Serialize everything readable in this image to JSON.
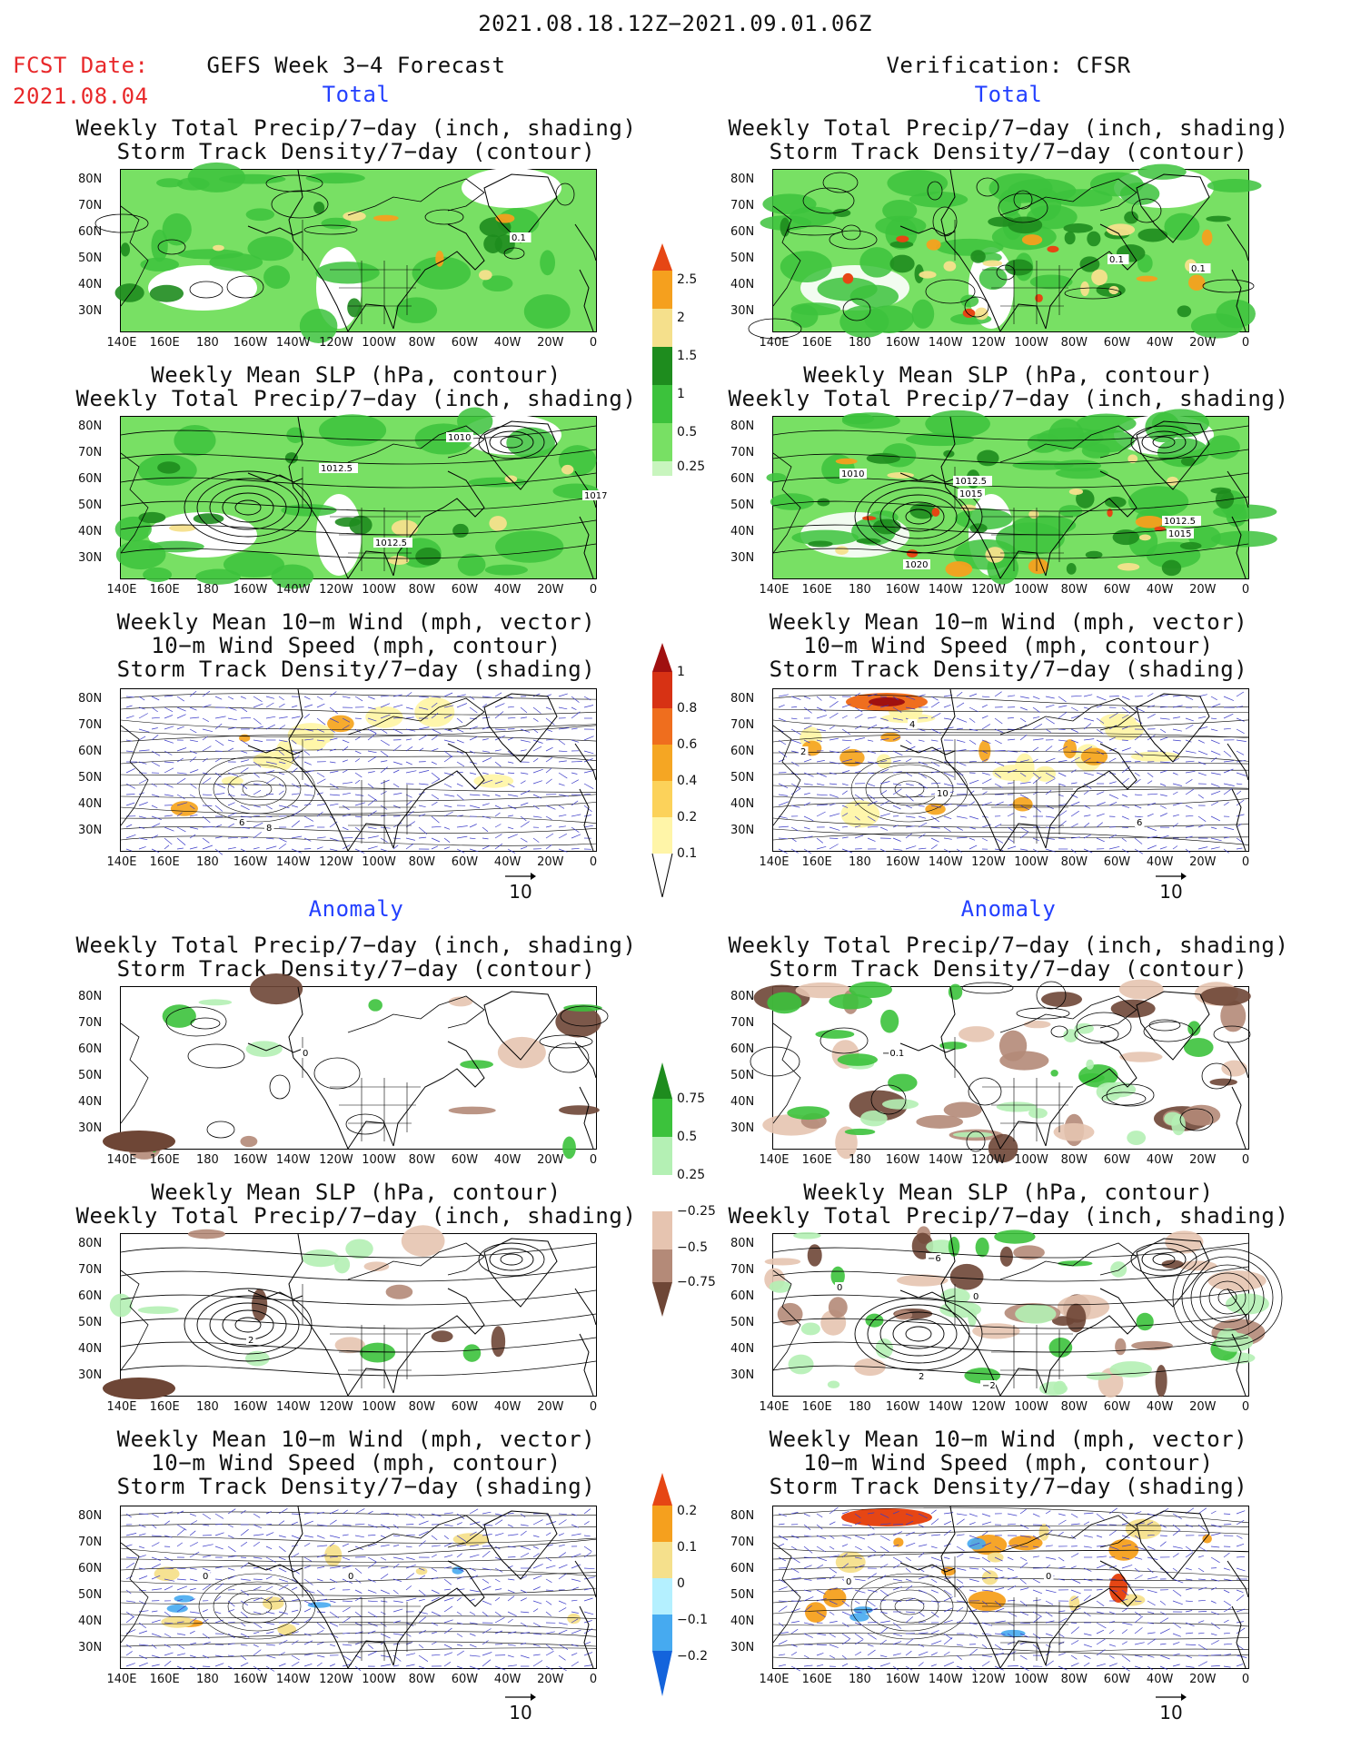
{
  "header": {
    "period": "2021.08.18.12Z−2021.09.01.06Z",
    "fcst_label": "FCST Date:",
    "fcst_date": "2021.08.04",
    "model": "GEFS Week 3−4 Forecast",
    "verification": "Verification: CFSR",
    "total": "Total",
    "anomaly": "Anomaly"
  },
  "titles": {
    "precip_storm": [
      "Weekly Total Precip/7−day (inch, shading)",
      "Storm Track Density/7−day (contour)"
    ],
    "slp_precip": [
      "Weekly Mean SLP (hPa, contour)",
      "Weekly Total Precip/7−day (inch, shading)"
    ],
    "wind": [
      "Weekly Mean 10−m Wind (mph, vector)",
      "10−m Wind Speed (mph, contour)",
      "Storm Track Density/7−day (shading)"
    ]
  },
  "axes": {
    "lat_ticks": [
      "80N",
      "70N",
      "60N",
      "50N",
      "40N",
      "30N"
    ],
    "lon_ticks": [
      "140E",
      "160E",
      "180",
      "160W",
      "140W",
      "120W",
      "100W",
      "80W",
      "60W",
      "40W",
      "20W",
      "0"
    ]
  },
  "vector_ref": "10",
  "colorbars": {
    "total_precip": [
      "2.5",
      "2",
      "1.5",
      "1",
      "0.5",
      "0.25"
    ],
    "total_storm": [
      "1",
      "0.8",
      "0.6",
      "0.4",
      "0.2",
      "0.1"
    ],
    "anom_precip": [
      "0.75",
      "0.5",
      "0.25",
      "−0.25",
      "−0.5",
      "−0.75"
    ],
    "anom_storm": [
      "0.2",
      "0.1",
      "0",
      "−0.1",
      "−0.2"
    ]
  },
  "map_labels": {
    "fc_precip": [
      "0.1"
    ],
    "ob_precip": [
      "0.1",
      "0.1"
    ],
    "fc_slp": [
      "1010",
      "1012.5",
      "1017",
      "1012.5"
    ],
    "ob_slp": [
      "1010",
      "1012.5",
      "1015",
      "1012.5",
      "1015",
      "1020"
    ],
    "ob_wind": [
      "4",
      "2",
      "10",
      "6"
    ],
    "fc_wind": [
      "6",
      "8"
    ],
    "fc_anom_precip": [
      "0"
    ],
    "ob_anom_precip": [
      "−0.1"
    ],
    "fc_anom_slp": [
      "2"
    ],
    "ob_anom_slp": [
      "0",
      "0",
      "2",
      "−2",
      "−6"
    ],
    "fc_anom_wind": [
      "0",
      "0"
    ],
    "ob_anom_wind": [
      "0",
      "0"
    ]
  },
  "colors": {
    "precip_green": [
      "#c8f5be",
      "#78e064",
      "#3cc23c",
      "#1e8c1e"
    ],
    "precip_warm": [
      "#f5e08c",
      "#f5a01e",
      "#e64614"
    ],
    "storm_warm": [
      "#fff5a8",
      "#fcd25a",
      "#f5a623",
      "#ef6e1e",
      "#d73214",
      "#a01010"
    ],
    "anom_brown": [
      "#e6c4b0",
      "#b48a78",
      "#6e4636"
    ],
    "anom_blue": [
      "#b4f0ff",
      "#46aaf0",
      "#1464dc"
    ],
    "contour": "#000000",
    "vector": "#3c3cc8"
  }
}
